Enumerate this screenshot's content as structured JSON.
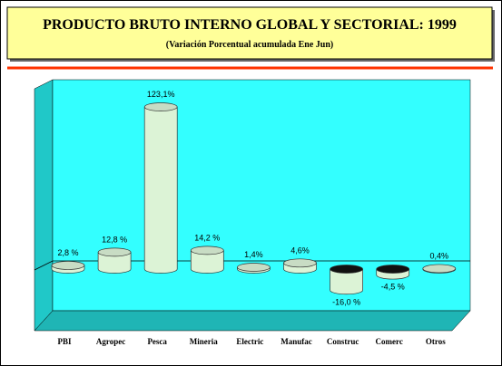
{
  "chart_data": {
    "type": "cylinder-bar",
    "title": "PRODUCTO BRUTO INTERNO GLOBAL Y SECTORIAL: 1999",
    "subtitle": "(Variación Porcentual acumulada Ene Jun)",
    "categories": [
      "PBI",
      "Agropec",
      "Pesca",
      "Mineria",
      "Electric",
      "Manufac",
      "Construc",
      "Comerc",
      "Otros"
    ],
    "values": [
      2.8,
      12.8,
      123.1,
      14.2,
      1.4,
      4.6,
      -16.0,
      -4.5,
      0.4
    ],
    "value_labels": [
      "2,8 %",
      "12,8 %",
      "123,1%",
      "14,2 %",
      "1,4%",
      "4,6%",
      "-16,0 %",
      "-4,5 %",
      "0,4%"
    ],
    "color": "#dcf3d6"
  }
}
